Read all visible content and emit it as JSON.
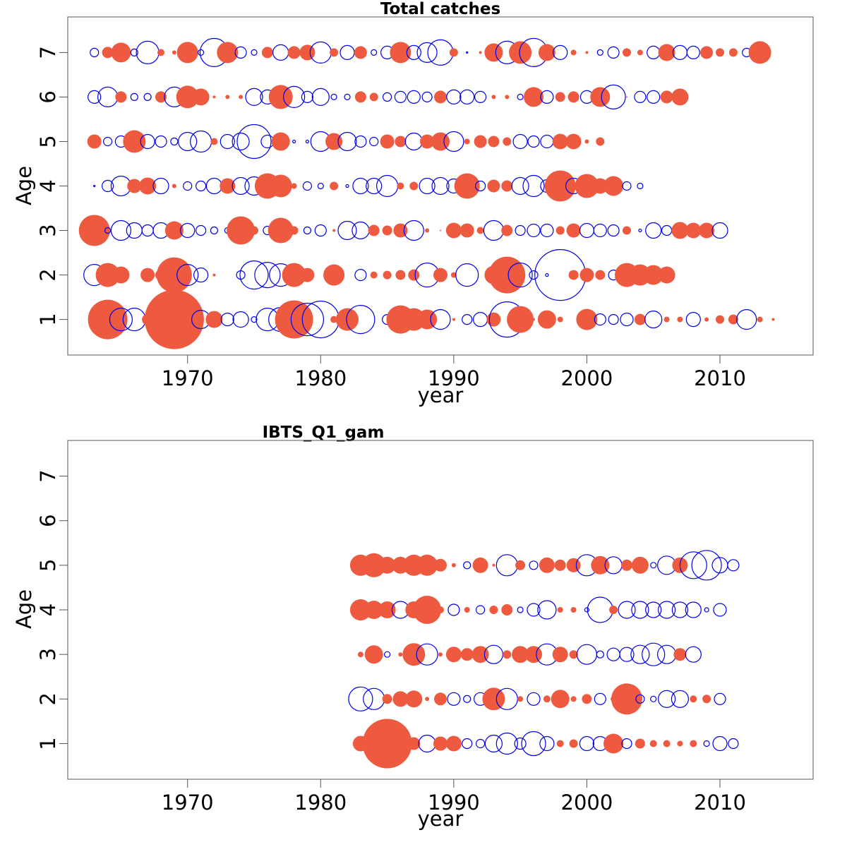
{
  "colors": {
    "positive": "#ee5a40",
    "negative": "#0000ee",
    "frame": "#555555"
  },
  "chart_data": [
    {
      "type": "scatter",
      "subtype": "bubble-residuals",
      "title": "Total catches",
      "xlabel": "year",
      "ylabel": "Age",
      "xlim": [
        1961,
        2017
      ],
      "ylim": [
        0.2,
        7.8
      ],
      "xticks": [
        1970,
        1980,
        1990,
        2000,
        2010
      ],
      "yticks": [
        1,
        2,
        3,
        4,
        5,
        6,
        7
      ],
      "legend": "none",
      "grid": false,
      "year_start": 1963,
      "ages": [
        1,
        2,
        3,
        4,
        5,
        6,
        7
      ],
      "residuals": {
        "1": [
          0.3,
          2.8,
          -1.6,
          -1.6,
          0.8,
          0,
          4.2,
          0,
          -1.3,
          1.2,
          -0.9,
          -1.1,
          -0.4,
          -1.6,
          -1.7,
          2.7,
          -2.3,
          -2.6,
          0.5,
          1.6,
          -2.0,
          0,
          -0.7,
          2.0,
          1.6,
          1.4,
          -1.4,
          0.2,
          -0.7,
          -1.0,
          1.0,
          -2.5,
          1.9,
          0.2,
          1.3,
          0.4,
          0,
          1.5,
          -0.8,
          -0.7,
          -0.9,
          0.8,
          -1.2,
          0.4,
          0.4,
          -1.0,
          0.3,
          0.6,
          0.7,
          -1.4,
          0.4,
          0.2
        ],
        "2": [
          -1.5,
          1.7,
          1.2,
          0,
          1.0,
          0.8,
          2.5,
          -1.5,
          -1.0,
          0.2,
          0,
          -0.6,
          -2.0,
          -1.8,
          -1.6,
          1.7,
          1.0,
          0,
          1.5,
          0,
          -0.8,
          0.5,
          0.6,
          0.7,
          0.8,
          -1.7,
          1.0,
          0.4,
          -1.6,
          0,
          1.3,
          2.6,
          -1.7,
          -0.6,
          -0.2,
          -3.6,
          0.7,
          1.0,
          0.7,
          -0.7,
          1.7,
          1.5,
          1.4,
          1.2
        ],
        "3": [
          2.2,
          -0.4,
          -1.4,
          -1.1,
          -0.8,
          -1.1,
          1.3,
          -1.0,
          -0.7,
          -0.5,
          -0.4,
          2.0,
          0.6,
          -0.6,
          1.8,
          0.6,
          -0.5,
          -0.8,
          0.2,
          -1.3,
          -1.2,
          0.8,
          0.7,
          1.0,
          -1.4,
          0.3,
          0.1,
          1.1,
          1.0,
          0.5,
          -1.4,
          0.8,
          -0.7,
          -0.9,
          -0.9,
          0.6,
          1.0,
          -1.0,
          -0.9,
          -0.8,
          0.6,
          -0.2,
          -1.1,
          -0.7,
          1.2,
          1.1,
          1.1,
          -1.1
        ],
        "4": [
          -0.1,
          -0.8,
          -1.4,
          1.0,
          1.2,
          -1.1,
          0.3,
          -0.6,
          -0.7,
          -1.1,
          1.1,
          -1.2,
          -1.3,
          1.8,
          1.6,
          0.4,
          -0.6,
          -0.4,
          0.6,
          -0.2,
          -1.1,
          -1.1,
          -1.5,
          0.5,
          0.6,
          -1.1,
          -1.2,
          -1.0,
          1.8,
          -0.7,
          0.9,
          0.8,
          -1.2,
          -1.5,
          -0.9,
          2.2,
          -1.1,
          1.7,
          1.1,
          1.4,
          -0.6,
          -0.4
        ],
        "5": [
          1.0,
          -0.6,
          -0.8,
          1.6,
          -1.0,
          -0.8,
          -0.5,
          -1.3,
          -1.5,
          0.5,
          -1.0,
          -1.2,
          -2.4,
          -0.9,
          1.3,
          -0.2,
          -0.2,
          -1.4,
          1.2,
          -1.3,
          -0.8,
          -0.6,
          1.0,
          0.8,
          -1.2,
          1.0,
          1.3,
          -1.4,
          0.4,
          0.9,
          0.8,
          0.6,
          -1.0,
          -0.8,
          -0.9,
          1.1,
          1.1,
          0.3,
          0.6
        ],
        "6": [
          -0.9,
          -1.4,
          0.8,
          -0.5,
          -0.5,
          0.8,
          -1.4,
          1.6,
          1.2,
          0.2,
          0.3,
          0.3,
          -1.2,
          -1.0,
          1.7,
          -1.5,
          -0.8,
          -1.2,
          -0.4,
          -0.4,
          0.8,
          0.6,
          -0.6,
          -0.8,
          -0.9,
          -0.7,
          0.9,
          -1.0,
          -1.0,
          -0.8,
          0.3,
          0.3,
          -0.4,
          1.4,
          -0.9,
          0.7,
          0.8,
          -0.9,
          1.4,
          -1.7,
          0.1,
          -0.8,
          -0.9,
          0.9,
          1.2
        ],
        "7": [
          -0.6,
          0.8,
          1.4,
          -0.5,
          -1.6,
          0.5,
          0.3,
          1.5,
          -0.4,
          -2.0,
          1.5,
          -0.8,
          -0.4,
          0.8,
          -1.1,
          0.9,
          1.1,
          -1.5,
          0.6,
          -1.0,
          0.9,
          -0.4,
          -0.9,
          1.5,
          -1.0,
          -1.4,
          -1.8,
          0.6,
          -0.1,
          0.2,
          1.3,
          -1.6,
          1.6,
          -2.0,
          1.2,
          -1.0,
          0.4,
          0.2,
          -0.4,
          -0.8,
          0.6,
          0.4,
          -0.9,
          1.2,
          -1.0,
          -0.9,
          0.9,
          0.6,
          0.6,
          -0.6,
          1.6
        ]
      }
    },
    {
      "type": "scatter",
      "subtype": "bubble-residuals",
      "title": "IBTS_Q1_gam",
      "xlabel": "year",
      "ylabel": "Age",
      "xlim": [
        1961,
        2017
      ],
      "ylim": [
        0.2,
        7.8
      ],
      "xticks": [
        1970,
        1980,
        1990,
        2000,
        2010
      ],
      "yticks": [
        1,
        2,
        3,
        4,
        5,
        6,
        7
      ],
      "legend": "none",
      "grid": false,
      "year_start": 1983,
      "ages": [
        1,
        2,
        3,
        4,
        5
      ],
      "residuals": {
        "1": [
          1.1,
          -0.5,
          3.5,
          0.5,
          0.9,
          -1.2,
          1.0,
          1.1,
          -0.7,
          -0.6,
          -1.2,
          -1.5,
          -0.8,
          -1.7,
          -1.0,
          0.5,
          0.6,
          -1.0,
          -1.0,
          1.4,
          -0.7,
          0.7,
          0.5,
          0.5,
          0.4,
          0.5,
          -0.4,
          -1.0,
          -0.7
        ],
        "2": [
          -1.7,
          -1.5,
          0.7,
          1.1,
          1.2,
          0.3,
          0.9,
          -0.9,
          -0.5,
          -0.9,
          1.6,
          -1.5,
          0.4,
          -0.9,
          0.5,
          1.3,
          0.4,
          0.7,
          -0.8,
          0.4,
          2.2,
          -0.6,
          -0.4,
          -1.2,
          -1.2,
          0.5,
          0.6,
          -0.8
        ],
        "3": [
          0.4,
          1.3,
          -0.4,
          0.3,
          1.6,
          -1.5,
          0.3,
          1.1,
          0.9,
          1.2,
          -1.3,
          0.6,
          1.2,
          1.2,
          -1.5,
          1.1,
          0.6,
          -1.4,
          -0.5,
          -0.9,
          -1.0,
          -1.3,
          -1.6,
          -1.3,
          0.9,
          -1.1
        ],
        "4": [
          1.5,
          1.3,
          1.2,
          -1.2,
          1.2,
          2.0,
          0.5,
          -0.8,
          0.4,
          -0.6,
          0.6,
          0.8,
          -0.4,
          -0.9,
          -1.3,
          0.4,
          0.4,
          -0.3,
          -1.8,
          0.6,
          -1.2,
          -1.2,
          -1.1,
          -1.2,
          -1.1,
          -1.1,
          -0.3,
          -0.9
        ],
        "5": [
          1.5,
          1.7,
          1.2,
          1.2,
          1.5,
          1.5,
          0.9,
          0.3,
          -0.5,
          1.1,
          0.2,
          -1.5,
          0.7,
          -0.6,
          1.1,
          0.8,
          1.0,
          -1.5,
          1.3,
          -1.2,
          0.8,
          1.2,
          -0.4,
          -1.3,
          1.1,
          -1.9,
          -2.1,
          -1.1,
          -0.8
        ]
      }
    }
  ]
}
